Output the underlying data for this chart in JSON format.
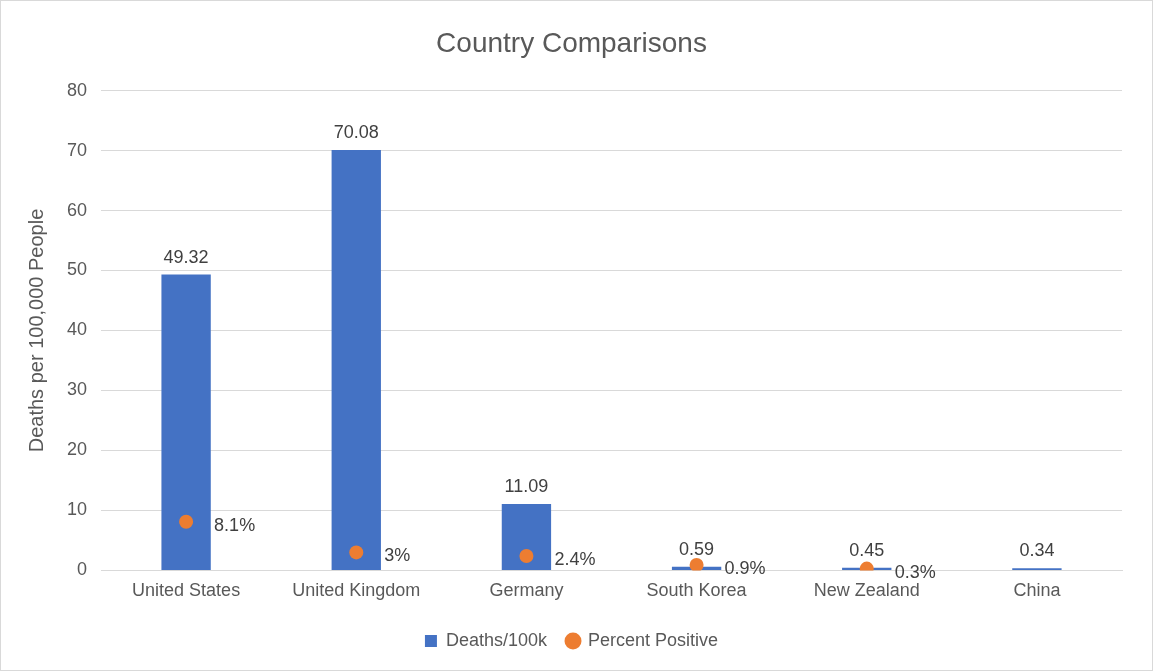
{
  "chart_data": {
    "type": "bar",
    "title": "Country Comparisons",
    "ylabel": "Deaths per 100,000 People",
    "categories": [
      "United States",
      "United Kingdom",
      "Germany",
      "South Korea",
      "New Zealand",
      "China"
    ],
    "series": [
      {
        "name": "Deaths/100k",
        "color": "#4472c4",
        "values": [
          49.32,
          70.08,
          11.09,
          0.59,
          0.45,
          0.34
        ]
      },
      {
        "name": "Percent Positive",
        "type": "scatter",
        "color": "#ed7d31",
        "values": [
          8.1,
          3,
          2.4,
          0.9,
          0.3,
          null
        ],
        "value_labels": [
          "8.1%",
          "3%",
          "2.4%",
          "0.9%",
          "0.3%",
          null
        ]
      }
    ],
    "ylim": [
      0,
      80
    ],
    "yticks": [
      0,
      10,
      20,
      30,
      40,
      50,
      60,
      70,
      80
    ],
    "grid": "y",
    "legend": "bottom",
    "data_labels": true,
    "marker": "circle"
  }
}
